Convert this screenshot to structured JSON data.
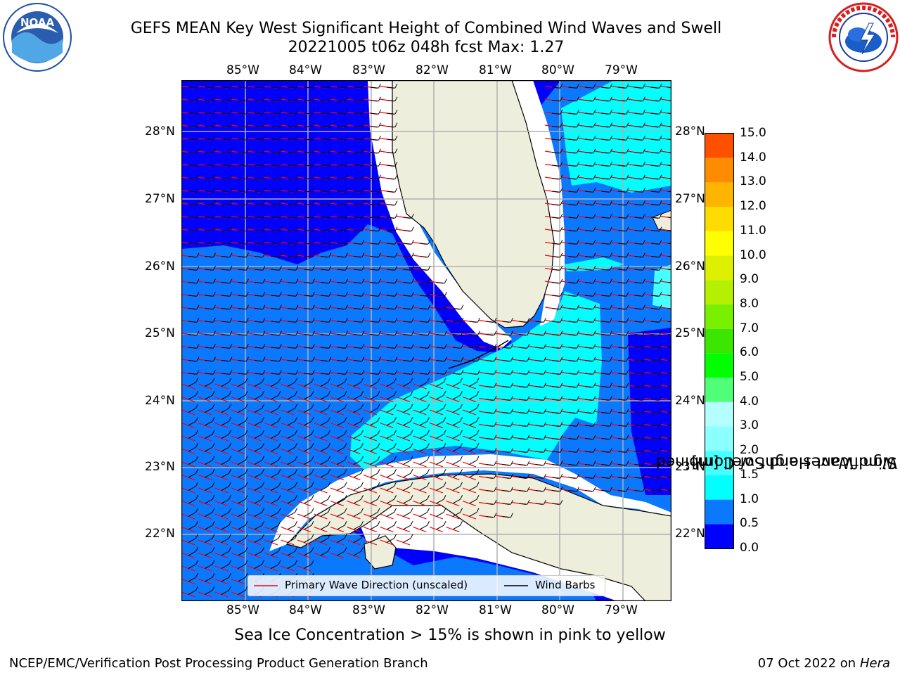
{
  "header": {
    "title_line1": "GEFS MEAN Key West Significant Height of Combined Wind Waves and Swell",
    "title_line2": "20221005 t06z 048h fcst   Max: 1.27"
  },
  "logos": {
    "noaa_text": "NOAA",
    "noaa_ring_text": "NATIONAL OCEANIC AND ATMOSPHERIC ADMINISTRATION · U.S. DEPARTMENT OF COMMERCE",
    "nws_ring_text": "NATIONAL WEATHER SERVICE"
  },
  "map": {
    "lon_labels": [
      "85°W",
      "84°W",
      "83°W",
      "82°W",
      "81°W",
      "80°W",
      "79°W"
    ],
    "lat_labels": [
      "28°N",
      "27°N",
      "26°N",
      "25°N",
      "24°N",
      "23°N",
      "22°N"
    ],
    "colors": {
      "land": "#eeeedc",
      "coast_gap": "#ffffff",
      "grid": "#b0b0b0",
      "wave_arrow": "#ff0000",
      "wind_barb": "#000000"
    }
  },
  "legend": {
    "wave_label": "Primary Wave Direction (unscaled)",
    "wind_label": "Wind Barbs"
  },
  "colorbar": {
    "label": "Significant Height of Combined\nWind Waves and Swell [m]",
    "ticks": [
      "0.0",
      "0.5",
      "1.0",
      "1.5",
      "2.0",
      "3.0",
      "4.0",
      "5.0",
      "6.0",
      "7.0",
      "8.0",
      "9.0",
      "10.0",
      "11.0",
      "12.0",
      "13.0",
      "14.0",
      "15.0"
    ],
    "colors": [
      "#0000ff",
      "#0a78ff",
      "#00ffff",
      "#46ffff",
      "#8cffff",
      "#b4ffff",
      "#50ff78",
      "#00ff00",
      "#3ce600",
      "#78f000",
      "#b4f000",
      "#dcf000",
      "#ffff00",
      "#ffdc00",
      "#ffb400",
      "#ff8c00",
      "#ff5000",
      "#ff2800",
      "#ff0000"
    ]
  },
  "notes": {
    "sea_ice": "Sea Ice Concentration > 15% is shown in pink to yellow"
  },
  "footer": {
    "left": "NCEP/EMC/Verification Post Processing Product Generation Branch",
    "right_prefix": "07 Oct 2022 on ",
    "right_host": "Hera"
  }
}
